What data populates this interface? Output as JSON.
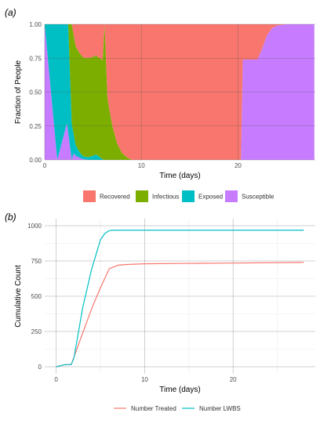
{
  "chart_data": [
    {
      "panel": "(a)",
      "type": "area",
      "xlabel": "Time (days)",
      "ylabel": "Fraction of People",
      "xlim": [
        0,
        28
      ],
      "ylim": [
        0,
        1
      ],
      "xticks": [
        "0",
        "10",
        "20"
      ],
      "yticks": [
        "0.00",
        "0.25",
        "0.50",
        "0.75",
        "1.00"
      ],
      "legend_position": "bottom",
      "stack_order_bottom_to_top": [
        "Susceptible",
        "Exposed",
        "Infectious",
        "Recovered"
      ],
      "series": [
        {
          "name": "Recovered",
          "color": "#F8766D",
          "x": [
            0,
            6.2,
            20.3,
            28
          ],
          "values": [
            0,
            1,
            1,
            0
          ]
        },
        {
          "name": "Infectious",
          "color": "#7CAE00",
          "x": [
            0,
            1.3,
            2.3,
            2.8,
            3.5,
            4.0,
            4.5,
            5.0,
            5.5,
            6.0,
            6.2,
            6.5,
            7.0,
            7.5,
            8.0,
            8.5,
            9.0,
            28
          ],
          "values": [
            0,
            0,
            0,
            0.73,
            0.73,
            0.73,
            0.73,
            0.73,
            0.73,
            0.73,
            1.0,
            0.45,
            0.25,
            0.12,
            0.05,
            0.02,
            0,
            0
          ]
        },
        {
          "name": "Exposed",
          "color": "#00BFC4",
          "x": [
            0,
            1.3,
            2.3,
            2.8,
            3.0,
            3.2,
            3.5,
            3.8,
            4.0,
            4.5,
            5.0,
            5.3,
            5.5,
            5.8,
            6.0,
            6.2,
            28
          ],
          "values": [
            0,
            1.0,
            1.0,
            0.27,
            0.14,
            0.08,
            0.05,
            0.03,
            0.02,
            0.02,
            0.03,
            0.04,
            0.03,
            0.015,
            0.005,
            0,
            0
          ]
        },
        {
          "name": "Susceptible",
          "color": "#C77CFF",
          "x": [
            0,
            1.3,
            2.3,
            2.8,
            3.0,
            3.2,
            3.5,
            3.8,
            4.0,
            4.5,
            5.0,
            5.3,
            5.5,
            5.8,
            6.0,
            6.2,
            20.3,
            20.5,
            21.0,
            22.0,
            22.5,
            23.0,
            23.5,
            24.0,
            25.0,
            28
          ],
          "values": [
            1.0,
            0,
            0.27,
            0,
            0.05,
            0.03,
            0.02,
            0.01,
            0.005,
            0,
            0,
            0,
            0,
            0,
            0,
            0,
            0,
            0.74,
            0.74,
            0.74,
            0.82,
            0.92,
            0.97,
            0.99,
            1.0,
            1.0
          ]
        }
      ]
    },
    {
      "panel": "(b)",
      "type": "line",
      "xlabel": "Time (days)",
      "ylabel": "Cumulative Count",
      "xlim": [
        0,
        28
      ],
      "ylim": [
        0,
        1000
      ],
      "xticks": [
        "0",
        "10",
        "20"
      ],
      "yticks": [
        "0",
        "250",
        "500",
        "750",
        "1000"
      ],
      "legend_position": "bottom",
      "series": [
        {
          "name": "Number Treated",
          "color": "#F8766D",
          "x": [
            0,
            1,
            1.7,
            3,
            4,
            5,
            6,
            7,
            8,
            10,
            15,
            20,
            28
          ],
          "values": [
            0,
            15,
            15,
            240,
            410,
            560,
            695,
            720,
            725,
            730,
            733,
            735,
            740
          ]
        },
        {
          "name": "Number LWBS",
          "color": "#00BFC4",
          "x": [
            0,
            1,
            1.7,
            2,
            3,
            4,
            5,
            5.5,
            6,
            6.5,
            7,
            10,
            20,
            28
          ],
          "values": [
            0,
            15,
            15,
            60,
            420,
            690,
            900,
            945,
            965,
            968,
            968,
            968,
            968,
            968
          ]
        }
      ]
    }
  ]
}
